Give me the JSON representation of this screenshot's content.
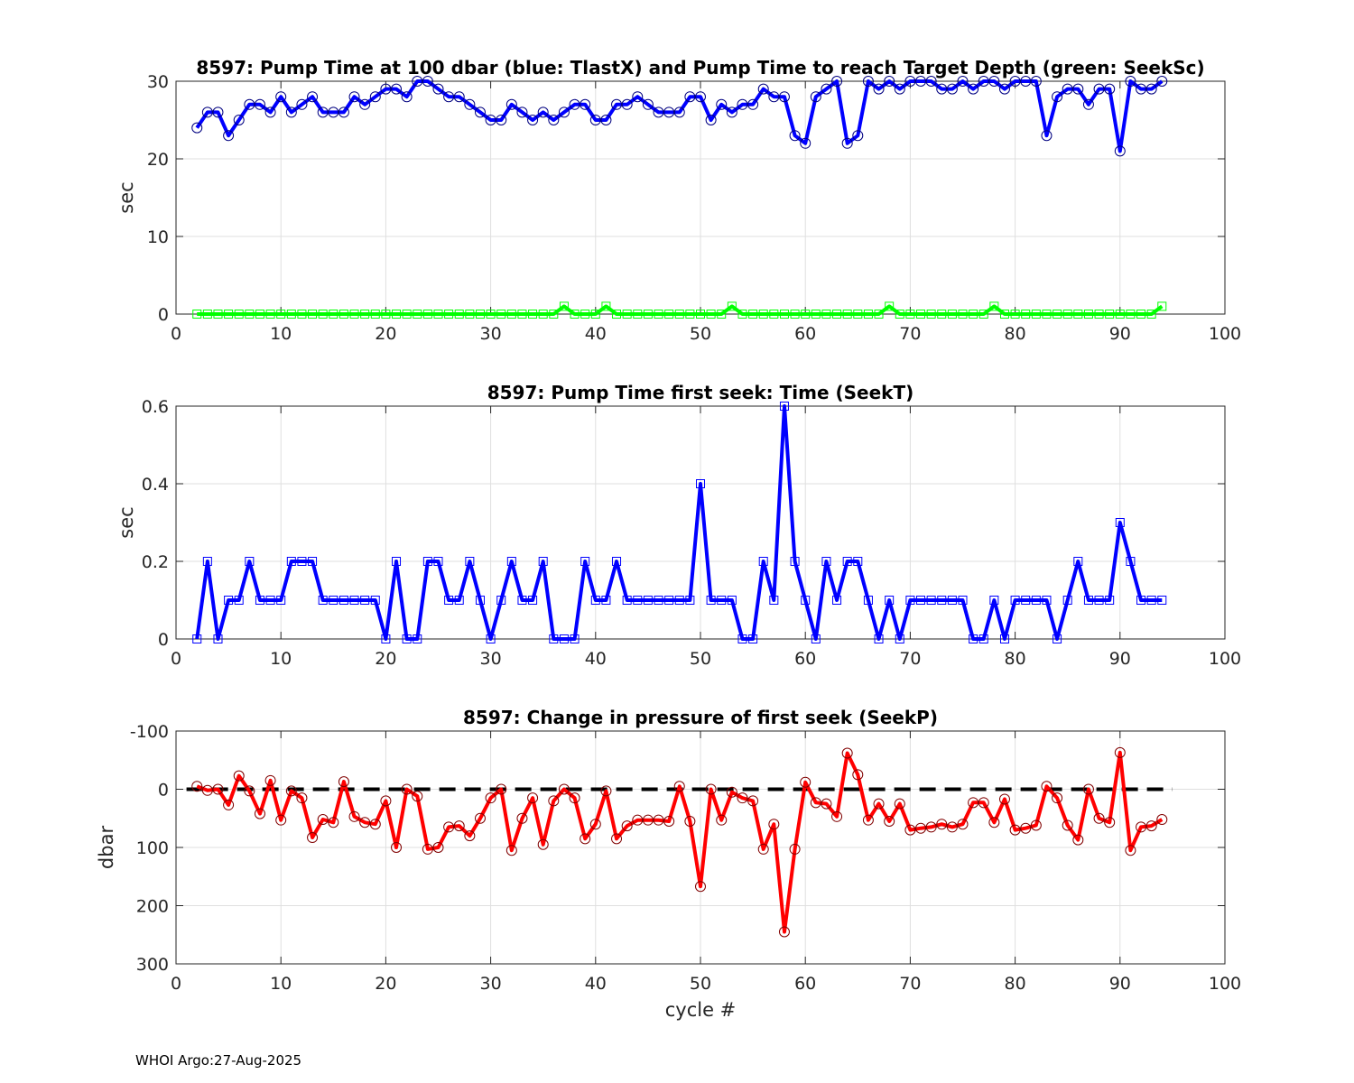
{
  "chart_data": [
    {
      "type": "line",
      "title": "8597:  Pump Time at 100 dbar (blue: TlastX) and Pump Time to reach Target Depth (green: SeekSc)",
      "xlabel": "",
      "ylabel": "sec",
      "xlim": [
        0,
        100
      ],
      "ylim": [
        0,
        30
      ],
      "xticks": [
        "0",
        "10",
        "20",
        "30",
        "40",
        "50",
        "60",
        "70",
        "80",
        "90",
        "100"
      ],
      "yticks": [
        "0",
        "10",
        "20",
        "30"
      ],
      "y_reversed": false,
      "grid": true,
      "x": [
        2,
        3,
        4,
        5,
        6,
        7,
        8,
        9,
        10,
        11,
        12,
        13,
        14,
        15,
        16,
        17,
        18,
        19,
        20,
        21,
        22,
        23,
        24,
        25,
        26,
        27,
        28,
        29,
        30,
        31,
        32,
        33,
        34,
        35,
        36,
        37,
        38,
        39,
        40,
        41,
        42,
        43,
        44,
        45,
        46,
        47,
        48,
        49,
        50,
        51,
        52,
        53,
        54,
        55,
        56,
        57,
        58,
        59,
        60,
        61,
        62,
        63,
        64,
        65,
        66,
        67,
        68,
        69,
        70,
        71,
        72,
        73,
        74,
        75,
        76,
        77,
        78,
        79,
        80,
        81,
        82,
        83,
        84,
        85,
        86,
        87,
        88,
        89,
        90,
        91,
        92,
        93,
        94
      ],
      "series": [
        {
          "color": "#0000ff",
          "marker": "circle",
          "values": [
            24,
            26,
            26,
            23,
            25,
            27,
            27,
            26,
            28,
            26,
            27,
            28,
            26,
            26,
            26,
            28,
            27,
            28,
            29,
            29,
            28,
            30,
            30,
            29,
            28,
            28,
            27,
            26,
            25,
            25,
            27,
            26,
            25,
            26,
            25,
            26,
            27,
            27,
            25,
            25,
            27,
            27,
            28,
            27,
            26,
            26,
            26,
            28,
            28,
            25,
            27,
            26,
            27,
            27,
            29,
            28,
            28,
            23,
            22,
            28,
            29,
            30,
            22,
            23,
            30,
            29,
            30,
            29,
            30,
            30,
            30,
            29,
            29,
            30,
            29,
            30,
            30,
            29,
            30,
            30,
            30,
            23,
            28,
            29,
            29,
            27,
            29,
            29,
            21,
            30,
            29,
            29,
            30
          ]
        },
        {
          "color": "#00ff00",
          "marker": "square",
          "values": [
            0,
            0,
            0,
            0,
            0,
            0,
            0,
            0,
            0,
            0,
            0,
            0,
            0,
            0,
            0,
            0,
            0,
            0,
            0,
            0,
            0,
            0,
            0,
            0,
            0,
            0,
            0,
            0,
            0,
            0,
            0,
            0,
            0,
            0,
            0,
            1,
            0,
            0,
            0,
            1,
            0,
            0,
            0,
            0,
            0,
            0,
            0,
            0,
            0,
            0,
            0,
            1,
            0,
            0,
            0,
            0,
            0,
            0,
            0,
            0,
            0,
            0,
            0,
            0,
            0,
            0,
            1,
            0,
            0,
            0,
            0,
            0,
            0,
            0,
            0,
            0,
            1,
            0,
            0,
            0,
            0,
            0,
            0,
            0,
            0,
            0,
            0,
            0,
            0,
            0,
            0,
            0,
            1
          ]
        }
      ]
    },
    {
      "type": "line",
      "title": "8597: Pump Time first seek: Time (SeekT)",
      "xlabel": "",
      "ylabel": "sec",
      "xlim": [
        0,
        100
      ],
      "ylim": [
        0,
        0.6
      ],
      "xticks": [
        "0",
        "10",
        "20",
        "30",
        "40",
        "50",
        "60",
        "70",
        "80",
        "90",
        "100"
      ],
      "yticks": [
        "0",
        "0.2",
        "0.4",
        "0.6"
      ],
      "y_reversed": false,
      "grid": true,
      "x": [
        2,
        3,
        4,
        5,
        6,
        7,
        8,
        9,
        10,
        11,
        12,
        13,
        14,
        15,
        16,
        17,
        18,
        19,
        20,
        21,
        22,
        23,
        24,
        25,
        26,
        27,
        28,
        29,
        30,
        31,
        32,
        33,
        34,
        35,
        36,
        37,
        38,
        39,
        40,
        41,
        42,
        43,
        44,
        45,
        46,
        47,
        48,
        49,
        50,
        51,
        52,
        53,
        54,
        55,
        56,
        57,
        58,
        59,
        60,
        61,
        62,
        63,
        64,
        65,
        66,
        67,
        68,
        69,
        70,
        71,
        72,
        73,
        74,
        75,
        76,
        77,
        78,
        79,
        80,
        81,
        82,
        83,
        84,
        85,
        86,
        87,
        88,
        89,
        90,
        91,
        92,
        93,
        94
      ],
      "series": [
        {
          "color": "#0000ff",
          "marker": "square",
          "values": [
            0,
            0.2,
            0,
            0.1,
            0.1,
            0.2,
            0.1,
            0.1,
            0.1,
            0.2,
            0.2,
            0.2,
            0.1,
            0.1,
            0.1,
            0.1,
            0.1,
            0.1,
            0,
            0.2,
            0,
            0,
            0.2,
            0.2,
            0.1,
            0.1,
            0.2,
            0.1,
            0,
            0.1,
            0.2,
            0.1,
            0.1,
            0.2,
            0,
            0,
            0,
            0.2,
            0.1,
            0.1,
            0.2,
            0.1,
            0.1,
            0.1,
            0.1,
            0.1,
            0.1,
            0.1,
            0.4,
            0.1,
            0.1,
            0.1,
            0,
            0,
            0.2,
            0.1,
            0.6,
            0.2,
            0.1,
            0,
            0.2,
            0.1,
            0.2,
            0.2,
            0.1,
            0,
            0.1,
            0,
            0.1,
            0.1,
            0.1,
            0.1,
            0.1,
            0.1,
            0,
            0,
            0.1,
            0,
            0.1,
            0.1,
            0.1,
            0.1,
            0,
            0.1,
            0.2,
            0.1,
            0.1,
            0.1,
            0.3,
            0.2,
            0.1,
            0.1,
            0.1
          ]
        }
      ]
    },
    {
      "type": "line",
      "title": "8597: Change in pressure of first seek (SeekP)",
      "xlabel": "cycle #",
      "ylabel": "dbar",
      "xlim": [
        0,
        100
      ],
      "ylim": [
        -100,
        300
      ],
      "xticks": [
        "0",
        "10",
        "20",
        "30",
        "40",
        "50",
        "60",
        "70",
        "80",
        "90",
        "100"
      ],
      "yticks": [
        "-100",
        "0",
        "100",
        "200",
        "300"
      ],
      "y_reversed": true,
      "grid": true,
      "reference_line": {
        "y": 0,
        "x": [
          1,
          95
        ],
        "color": "#000000",
        "style": "dashed"
      },
      "x": [
        2,
        3,
        4,
        5,
        6,
        7,
        8,
        9,
        10,
        11,
        12,
        13,
        14,
        15,
        16,
        17,
        18,
        19,
        20,
        21,
        22,
        23,
        24,
        25,
        26,
        27,
        28,
        29,
        30,
        31,
        32,
        33,
        34,
        35,
        36,
        37,
        38,
        39,
        40,
        41,
        42,
        43,
        44,
        45,
        46,
        47,
        48,
        49,
        50,
        51,
        52,
        53,
        54,
        55,
        56,
        57,
        58,
        59,
        60,
        61,
        62,
        63,
        64,
        65,
        66,
        67,
        68,
        69,
        70,
        71,
        72,
        73,
        74,
        75,
        76,
        77,
        78,
        79,
        80,
        81,
        82,
        83,
        84,
        85,
        86,
        87,
        88,
        89,
        90,
        91,
        92,
        93,
        94
      ],
      "series": [
        {
          "color": "#ff0000",
          "marker": "circle",
          "values": [
            -5,
            2,
            0,
            27,
            -23,
            3,
            42,
            -15,
            53,
            3,
            15,
            83,
            52,
            57,
            -13,
            47,
            57,
            60,
            20,
            100,
            0,
            12,
            103,
            100,
            65,
            63,
            80,
            50,
            15,
            0,
            105,
            50,
            15,
            95,
            20,
            0,
            15,
            85,
            60,
            3,
            85,
            63,
            53,
            53,
            53,
            55,
            -5,
            55,
            167,
            0,
            53,
            5,
            15,
            20,
            103,
            60,
            245,
            103,
            -12,
            23,
            25,
            47,
            -62,
            -25,
            53,
            25,
            55,
            25,
            70,
            67,
            65,
            60,
            65,
            60,
            23,
            23,
            57,
            17,
            70,
            67,
            62,
            -5,
            15,
            62,
            87,
            0,
            50,
            57,
            -63,
            105,
            65,
            63,
            52
          ]
        }
      ]
    }
  ],
  "footer": "WHOI Argo:27-Aug-2025"
}
